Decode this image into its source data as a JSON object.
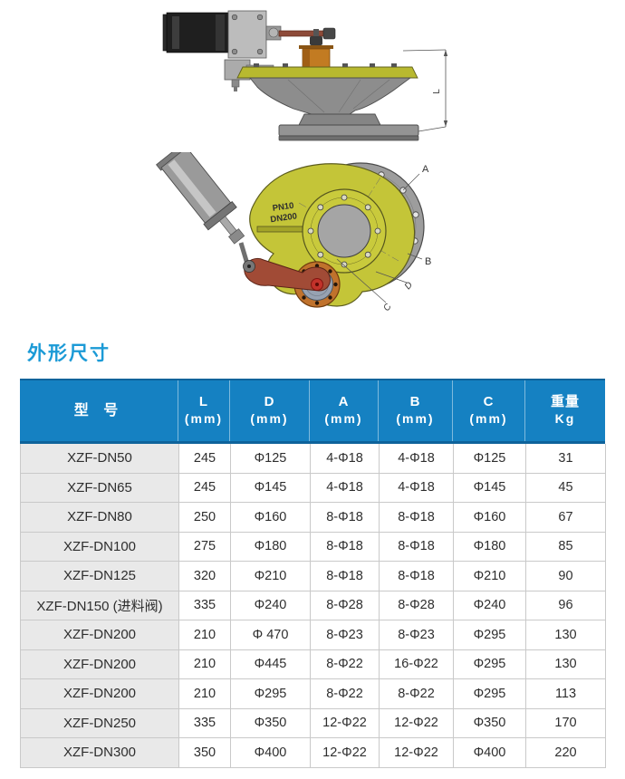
{
  "section_title": "外形尺寸",
  "drawings": {
    "side_view": {
      "dim_label": "L"
    },
    "front_view": {
      "marking_line1": "PN10",
      "marking_line2": "DN200",
      "label_a": "A",
      "label_b": "B",
      "label_c": "C",
      "label_d": "D"
    }
  },
  "table": {
    "headers": [
      {
        "top": "型 号",
        "bottom": ""
      },
      {
        "top": "L",
        "bottom": "(mm)"
      },
      {
        "top": "D",
        "bottom": "(mm)"
      },
      {
        "top": "A",
        "bottom": "(mm)"
      },
      {
        "top": "B",
        "bottom": "(mm)"
      },
      {
        "top": "C",
        "bottom": "(mm)"
      },
      {
        "top": "重量",
        "bottom": "Kg"
      }
    ],
    "rows": [
      [
        "XZF-DN50",
        "245",
        "Φ125",
        "4-Φ18",
        "4-Φ18",
        "Φ125",
        "31"
      ],
      [
        "XZF-DN65",
        "245",
        "Φ145",
        "4-Φ18",
        "4-Φ18",
        "Φ145",
        "45"
      ],
      [
        "XZF-DN80",
        "250",
        "Φ160",
        "8-Φ18",
        "8-Φ18",
        "Φ160",
        "67"
      ],
      [
        "XZF-DN100",
        "275",
        "Φ180",
        "8-Φ18",
        "8-Φ18",
        "Φ180",
        "85"
      ],
      [
        "XZF-DN125",
        "320",
        "Φ210",
        "8-Φ18",
        "8-Φ18",
        "Φ210",
        "90"
      ],
      [
        "XZF-DN150 (进料阀)",
        "335",
        "Φ240",
        "8-Φ28",
        "8-Φ28",
        "Φ240",
        "96"
      ],
      [
        "XZF-DN200",
        "210",
        "Φ 470",
        "8-Φ23",
        "8-Φ23",
        "Φ295",
        "130"
      ],
      [
        "XZF-DN200",
        "210",
        "Φ445",
        "8-Φ22",
        "16-Φ22",
        "Φ295",
        "130"
      ],
      [
        "XZF-DN200",
        "210",
        "Φ295",
        "8-Φ22",
        "8-Φ22",
        "Φ295",
        "113"
      ],
      [
        "XZF-DN250",
        "335",
        "Φ350",
        "12-Φ22",
        "12-Φ22",
        "Φ350",
        "170"
      ],
      [
        "XZF-DN300",
        "350",
        "Φ400",
        "12-Φ22",
        "12-Φ22",
        "Φ400",
        "220"
      ]
    ]
  },
  "colors": {
    "header_bg": "#1581c2",
    "header_border": "#0e639b",
    "heading_text": "#1b9ad6",
    "model_col_bg": "#e9e9e9",
    "grid_line": "#c9c9c9",
    "valve_yellow": "#c4c538",
    "base_gray": "#9d9d9d",
    "lever_red": "#a14b36",
    "hub_orange": "#c0722c",
    "hub_center_red": "#c2322a"
  }
}
